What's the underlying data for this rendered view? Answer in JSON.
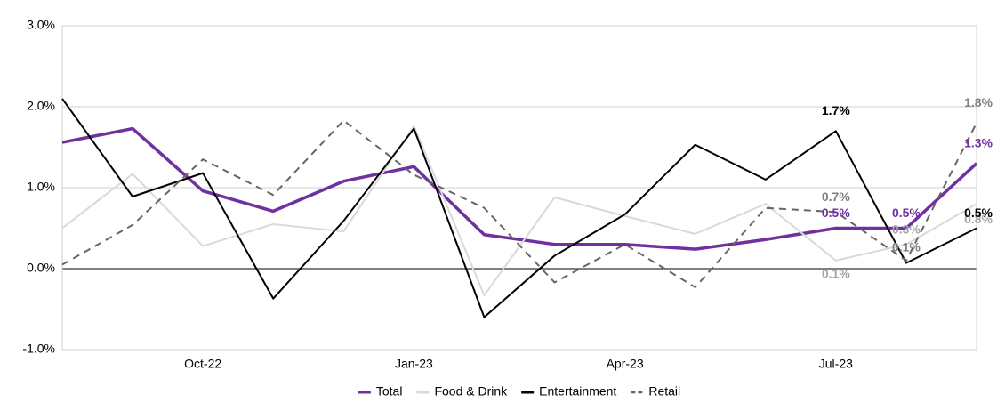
{
  "chart_data": {
    "type": "line",
    "categories": [
      null,
      null,
      "Oct-22",
      null,
      null,
      "Jan-23",
      null,
      null,
      "Apr-23",
      null,
      null,
      "Jul-23",
      null,
      null
    ],
    "ylim": [
      -1,
      3
    ],
    "yticks": [
      {
        "value": -1,
        "label": "-1.0%"
      },
      {
        "value": 0,
        "label": "0.0%"
      },
      {
        "value": 1,
        "label": "1.0%"
      },
      {
        "value": 2,
        "label": "2.0%"
      },
      {
        "value": 3,
        "label": "3.0%"
      }
    ],
    "grid": true,
    "legend": "bottom",
    "series": [
      {
        "name": "Total",
        "color": "#7030a0",
        "width": 3.5,
        "dashed": false,
        "values": [
          1.56,
          1.73,
          0.96,
          0.71,
          1.08,
          1.26,
          0.42,
          0.3,
          0.3,
          0.24,
          0.36,
          0.5,
          0.5,
          1.3
        ],
        "value_labels": [
          null,
          null,
          null,
          null,
          null,
          null,
          null,
          null,
          null,
          null,
          null,
          "0.5%",
          "0.5%",
          "1.3%"
        ]
      },
      {
        "name": "Food & Drink",
        "color": "#d9d9d9",
        "width": 2,
        "dashed": false,
        "values": [
          0.5,
          1.17,
          0.28,
          0.55,
          0.46,
          1.76,
          -0.33,
          0.88,
          0.65,
          0.43,
          0.8,
          0.1,
          0.3,
          0.8
        ],
        "value_labels": [
          null,
          null,
          null,
          null,
          null,
          null,
          null,
          null,
          null,
          null,
          null,
          "0.1%",
          "0.3%",
          "0.8%"
        ]
      },
      {
        "name": "Entertainment",
        "color": "#000000",
        "width": 2,
        "dashed": false,
        "values": [
          2.1,
          0.89,
          1.18,
          -0.37,
          0.59,
          1.73,
          -0.6,
          0.16,
          0.67,
          1.53,
          1.1,
          1.7,
          0.07,
          0.5
        ],
        "value_labels": [
          null,
          null,
          null,
          null,
          null,
          null,
          null,
          null,
          null,
          null,
          null,
          "1.7%",
          null,
          "0.5%"
        ]
      },
      {
        "name": "Retail",
        "color": "#666666",
        "width": 2,
        "dashed": true,
        "values": [
          0.05,
          0.54,
          1.35,
          0.91,
          1.83,
          1.16,
          0.75,
          -0.17,
          0.3,
          -0.23,
          0.75,
          0.7,
          0.1,
          1.8
        ],
        "value_labels": [
          null,
          null,
          null,
          null,
          null,
          null,
          null,
          null,
          null,
          null,
          null,
          "0.7%",
          "0.1%",
          "1.8%"
        ]
      }
    ]
  }
}
